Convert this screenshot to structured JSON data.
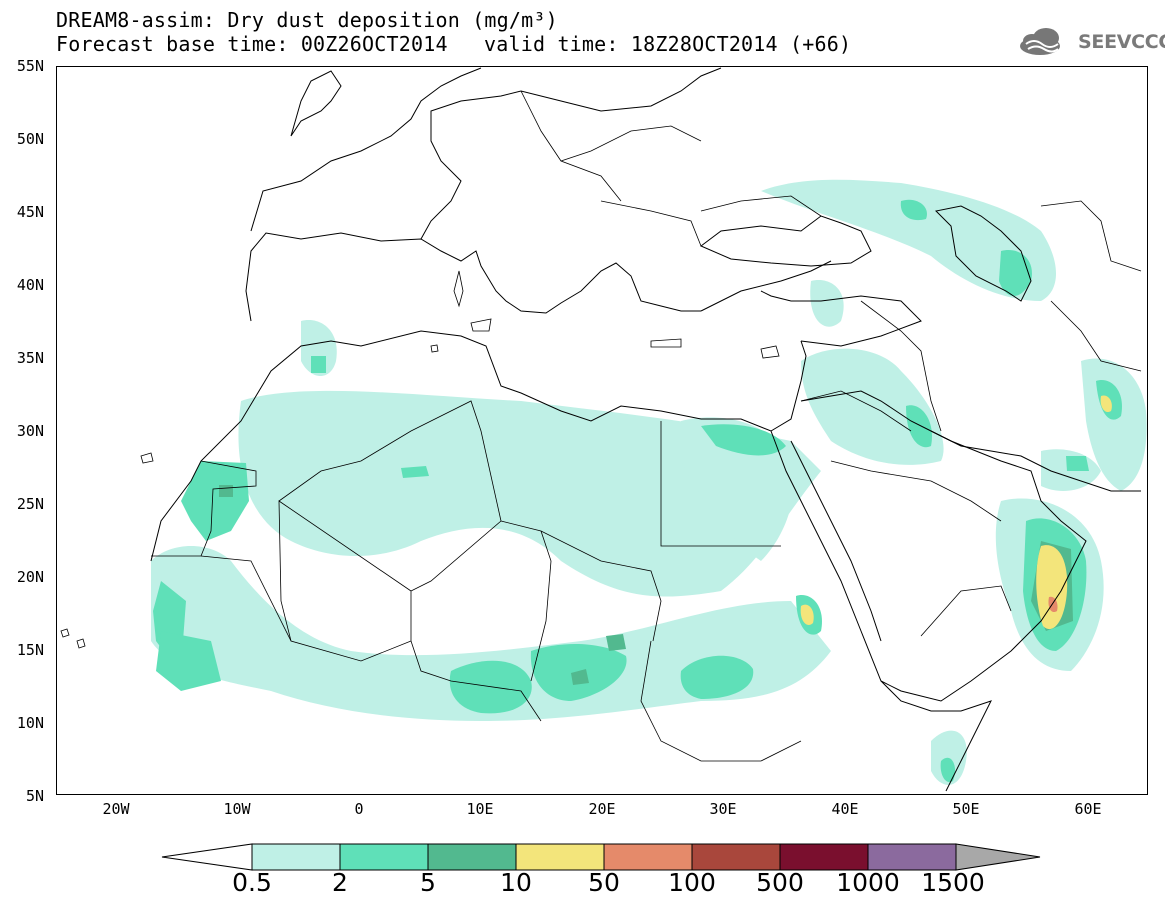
{
  "header": {
    "title_line1": "DREAM8-assim: Dry dust deposition (mg/m³)",
    "title_line2": "Forecast base time: 00Z26OCT2014",
    "valid_time": "valid time: 18Z28OCT2014 (+66)",
    "logo_text": "SEEVCCC"
  },
  "map": {
    "lat_labels": [
      "55N",
      "50N",
      "45N",
      "40N",
      "35N",
      "30N",
      "25N",
      "20N",
      "15N",
      "10N",
      "5N"
    ],
    "lon_labels": [
      "20W",
      "10W",
      "0",
      "10E",
      "20E",
      "30E",
      "40E",
      "50E",
      "60E"
    ],
    "lon_range": [
      -25,
      65
    ],
    "lat_range": [
      5,
      55
    ]
  },
  "legend": {
    "labels": [
      "0.5",
      "2",
      "5",
      "10",
      "50",
      "100",
      "500",
      "1000",
      "1500"
    ],
    "colors": [
      "#ffffff",
      "#bff0e6",
      "#5fe0b8",
      "#52b98f",
      "#f3e57b",
      "#e58a6a",
      "#a9473c",
      "#7a0f2e",
      "#8b6a9e",
      "#a8a8a8"
    ]
  }
}
